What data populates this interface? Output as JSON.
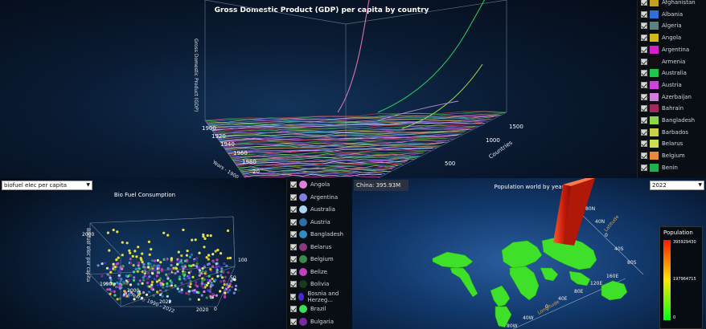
{
  "gdp": {
    "title": "Gross Domestic Product (GDP) per capita by country",
    "z_label": "Gross Domestic Product (GDP)",
    "x_label": "Years - 1900 - 20...",
    "y_label": "Countries",
    "year_ticks": [
      "1900",
      "1920",
      "1940",
      "1960",
      "1980",
      "20"
    ],
    "country_ticks": [
      "1500",
      "1000",
      "500"
    ]
  },
  "gdp_legend": {
    "items": [
      {
        "label": "Afghanistan",
        "color": "#c4a21e"
      },
      {
        "label": "Albania",
        "color": "#2f6fd6"
      },
      {
        "label": "Algeria",
        "color": "#5f7f80"
      },
      {
        "label": "Angola",
        "color": "#d1b91b"
      },
      {
        "label": "Argentina",
        "color": "#d321c8"
      },
      {
        "label": "Armenia",
        "color": "#111111"
      },
      {
        "label": "Australia",
        "color": "#22c24e"
      },
      {
        "label": "Austria",
        "color": "#cc44d9"
      },
      {
        "label": "Azerbaijan",
        "color": "#d07fd8"
      },
      {
        "label": "Bahrain",
        "color": "#a12a5c"
      },
      {
        "label": "Bangladesh",
        "color": "#8fd64a"
      },
      {
        "label": "Barbados",
        "color": "#c8d04a"
      },
      {
        "label": "Belarus",
        "color": "#c9dd58"
      },
      {
        "label": "Belgium",
        "color": "#e88a3a"
      },
      {
        "label": "Benin",
        "color": "#22b04e"
      }
    ]
  },
  "bio": {
    "title": "Bio Fuel Consumption",
    "selector_value": "biofuel elec per capita",
    "z_label": "Biofuel elec per capita",
    "x_label": "Years - 1990 - 2022",
    "z_ticks": [
      "2000"
    ],
    "x_ticks": [
      "1990",
      "2000",
      "2022"
    ],
    "y_ticks": [
      "100",
      "50",
      "0"
    ],
    "y_tick_extra": [
      "2020"
    ]
  },
  "bio_legend": {
    "items": [
      {
        "label": "Angola",
        "color": "#e07fd8"
      },
      {
        "label": "Argentina",
        "color": "#7f7fe0"
      },
      {
        "label": "Australia",
        "color": "#a9d6f5"
      },
      {
        "label": "Austria",
        "color": "#2e6fa8"
      },
      {
        "label": "Bangladesh",
        "color": "#2f8fc0"
      },
      {
        "label": "Belarus",
        "color": "#8a3a7a"
      },
      {
        "label": "Belgium",
        "color": "#3a8a4e"
      },
      {
        "label": "Belize",
        "color": "#c040c0"
      },
      {
        "label": "Bolivia",
        "color": "#1a3a1a"
      },
      {
        "label": "Bosnia and Herzeg...",
        "color": "#4a2ad0"
      },
      {
        "label": "Brazil",
        "color": "#3ae05a"
      },
      {
        "label": "Bulgaria",
        "color": "#7a2a9a"
      }
    ]
  },
  "pop": {
    "title": "Population world by year",
    "tooltip": "China: 395.93M",
    "year_value": "2022",
    "legend_title": "Population",
    "legend_max": "395929430",
    "legend_mid": "197964715",
    "legend_min": "0",
    "lat_label": "Latitude",
    "lon_label": "Longitude",
    "lat_ticks": [
      "80N",
      "40N",
      "0",
      "40S",
      "80S"
    ],
    "lon_ticks": [
      "160E",
      "120E",
      "80E",
      "40E",
      "0",
      "40W",
      "80W"
    ]
  },
  "colors": {
    "background": "#0a1424",
    "legend_bg": "#090d14",
    "map_land": "#3fe02a",
    "china_bar": "#e83a1a"
  }
}
